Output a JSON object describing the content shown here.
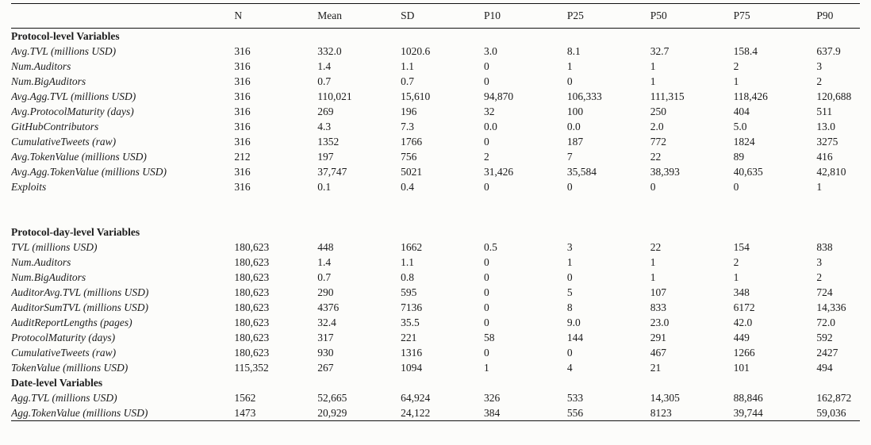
{
  "table": {
    "columns": [
      "",
      "N",
      "Mean",
      "SD",
      "P10",
      "P25",
      "P50",
      "P75",
      "P90"
    ],
    "rows": [
      {
        "type": "section",
        "label": "Protocol-level Variables"
      },
      {
        "type": "data",
        "label": "Avg.TVL (millions USD)",
        "values": [
          "316",
          "332.0",
          "1020.6",
          "3.0",
          "8.1",
          "32.7",
          "158.4",
          "637.9"
        ]
      },
      {
        "type": "data",
        "label": "Num.Auditors",
        "values": [
          "316",
          "1.4",
          "1.1",
          "0",
          "1",
          "1",
          "2",
          "3"
        ]
      },
      {
        "type": "data",
        "label": "Num.BigAuditors",
        "values": [
          "316",
          "0.7",
          "0.7",
          "0",
          "0",
          "1",
          "1",
          "2"
        ]
      },
      {
        "type": "data",
        "label": "Avg.Agg.TVL (millions USD)",
        "values": [
          "316",
          "110,021",
          "15,610",
          "94,870",
          "106,333",
          "111,315",
          "118,426",
          "120,688"
        ]
      },
      {
        "type": "data",
        "label": "Avg.ProtocolMaturity (days)",
        "values": [
          "316",
          "269",
          "196",
          "32",
          "100",
          "250",
          "404",
          "511"
        ]
      },
      {
        "type": "data",
        "label": "GitHubContributors",
        "values": [
          "316",
          "4.3",
          "7.3",
          "0.0",
          "0.0",
          "2.0",
          "5.0",
          "13.0"
        ]
      },
      {
        "type": "data",
        "label": "CumulativeTweets (raw)",
        "values": [
          "316",
          "1352",
          "1766",
          "0",
          "187",
          "772",
          "1824",
          "3275"
        ]
      },
      {
        "type": "data",
        "label": "Avg.TokenValue (millions USD)",
        "values": [
          "212",
          "197",
          "756",
          "2",
          "7",
          "22",
          "89",
          "416"
        ]
      },
      {
        "type": "data",
        "label": "Avg.Agg.TokenValue (millions USD)",
        "values": [
          "316",
          "37,747",
          "5021",
          "31,426",
          "35,584",
          "38,393",
          "40,635",
          "42,810"
        ]
      },
      {
        "type": "data",
        "label": "Exploits",
        "values": [
          "316",
          "0.1",
          "0.4",
          "0",
          "0",
          "0",
          "0",
          "1"
        ]
      },
      {
        "type": "spacer"
      },
      {
        "type": "section",
        "label": "Protocol-day-level Variables"
      },
      {
        "type": "data",
        "label": "TVL (millions USD)",
        "values": [
          "180,623",
          "448",
          "1662",
          "0.5",
          "3",
          "22",
          "154",
          "838"
        ]
      },
      {
        "type": "data",
        "label": "Num.Auditors",
        "values": [
          "180,623",
          "1.4",
          "1.1",
          "0",
          "1",
          "1",
          "2",
          "3"
        ]
      },
      {
        "type": "data",
        "label": "Num.BigAuditors",
        "values": [
          "180,623",
          "0.7",
          "0.8",
          "0",
          "0",
          "1",
          "1",
          "2"
        ]
      },
      {
        "type": "data",
        "label": "AuditorAvg.TVL (millions USD)",
        "values": [
          "180,623",
          "290",
          "595",
          "0",
          "5",
          "107",
          "348",
          "724"
        ]
      },
      {
        "type": "data",
        "label": "AuditorSumTVL (millions USD)",
        "values": [
          "180,623",
          "4376",
          "7136",
          "0",
          "8",
          "833",
          "6172",
          "14,336"
        ]
      },
      {
        "type": "data",
        "label": "AuditReportLengths (pages)",
        "values": [
          "180,623",
          "32.4",
          "35.5",
          "0",
          "9.0",
          "23.0",
          "42.0",
          "72.0"
        ]
      },
      {
        "type": "data",
        "label": "ProtocolMaturity (days)",
        "values": [
          "180,623",
          "317",
          "221",
          "58",
          "144",
          "291",
          "449",
          "592"
        ]
      },
      {
        "type": "data",
        "label": "CumulativeTweets (raw)",
        "values": [
          "180,623",
          "930",
          "1316",
          "0",
          "0",
          "467",
          "1266",
          "2427"
        ]
      },
      {
        "type": "data",
        "label": "TokenValue (millions USD)",
        "values": [
          "115,352",
          "267",
          "1094",
          "1",
          "4",
          "21",
          "101",
          "494"
        ]
      },
      {
        "type": "section",
        "label": "Date-level Variables"
      },
      {
        "type": "data",
        "label": "Agg.TVL (millions USD)",
        "values": [
          "1562",
          "52,665",
          "64,924",
          "326",
          "533",
          "14,305",
          "88,846",
          "162,872"
        ]
      },
      {
        "type": "data",
        "label": "Agg.TokenValue (millions USD)",
        "values": [
          "1473",
          "20,929",
          "24,122",
          "384",
          "556",
          "8123",
          "39,744",
          "59,036"
        ]
      }
    ]
  }
}
